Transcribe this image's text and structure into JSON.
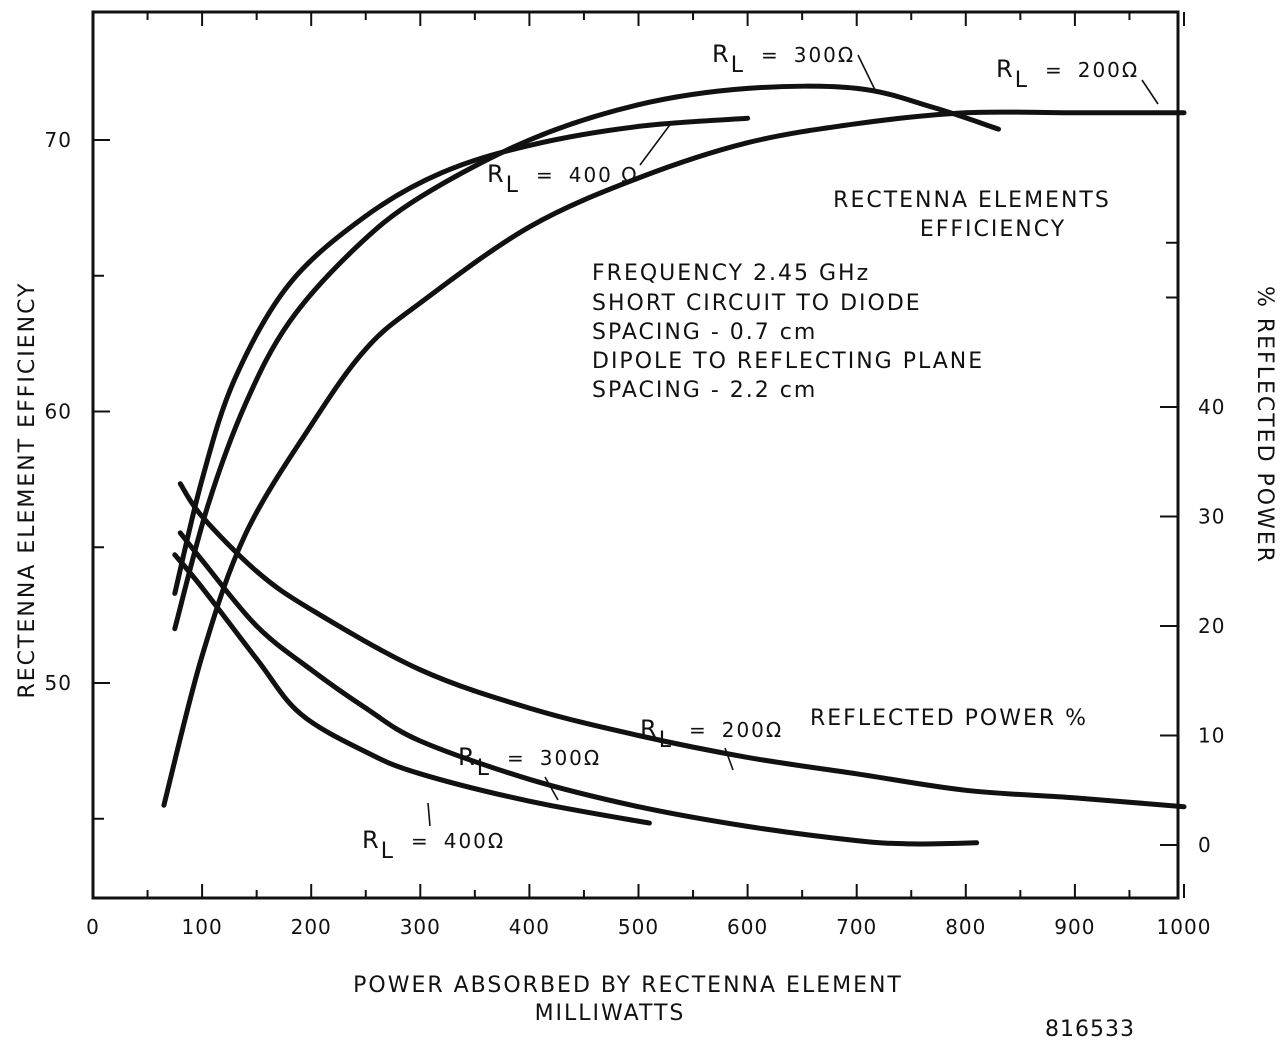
{
  "chart_data": {
    "type": "line",
    "xlabel": "POWER ABSORBED BY RECTENNA ELEMENT",
    "xlabel_units": "MILLIWATTS",
    "ylabel_left": "RECTENNA ELEMENT EFFICIENCY",
    "ylabel_right": "% REFLECTED POWER",
    "xlim": [
      0,
      1000
    ],
    "ylim_left": [
      42,
      75
    ],
    "ylim_right": [
      -5,
      60
    ],
    "x_ticks": [
      "0",
      "100",
      "200",
      "300",
      "400",
      "500",
      "600",
      "700",
      "800",
      "900",
      "1000"
    ],
    "y_left_ticks": [
      "50",
      "60",
      "70"
    ],
    "y_right_ticks": [
      "0",
      "10",
      "20",
      "30",
      "40"
    ],
    "grid": false,
    "title": "RECTENNA ELEMENTS\nEFFICIENCY",
    "conditions": [
      "FREQUENCY 2.45 GHz",
      "SHORT CIRCUIT TO DIODE",
      "SPACING - 0.7 cm",
      "DIPOLE TO REFLECTING PLANE",
      "SPACING - 2.2 cm"
    ],
    "reflected_label": "REFLECTED POWER %",
    "figure_number": "816533",
    "efficiency_series": [
      {
        "name": "R_L = 400Ω",
        "axis": "left",
        "x": [
          75,
          100,
          130,
          180,
          250,
          320,
          400,
          500,
          600
        ],
        "y": [
          53.3,
          57.5,
          61.2,
          64.7,
          67.2,
          68.8,
          69.8,
          70.5,
          70.8
        ]
      },
      {
        "name": "R_L = 300Ω",
        "axis": "left",
        "x": [
          75,
          105,
          140,
          180,
          240,
          300,
          400,
          500,
          600,
          700,
          770,
          830
        ],
        "y": [
          52.0,
          56.5,
          60.3,
          63.3,
          66.0,
          67.9,
          70.0,
          71.3,
          71.9,
          71.9,
          71.2,
          70.4
        ]
      },
      {
        "name": "R_L = 200Ω",
        "axis": "left",
        "x": [
          65,
          100,
          140,
          200,
          250,
          300,
          400,
          500,
          600,
          700,
          800,
          900,
          1000
        ],
        "y": [
          45.5,
          51.0,
          55.5,
          59.5,
          62.3,
          64.0,
          66.8,
          68.6,
          69.9,
          70.6,
          71.0,
          71.0,
          71.0
        ]
      }
    ],
    "reflected_series": [
      {
        "name": "R_L = 200Ω",
        "axis": "right",
        "x": [
          80,
          100,
          150,
          200,
          300,
          400,
          500,
          600,
          700,
          800,
          900,
          1000
        ],
        "y": [
          33.0,
          30.0,
          25.0,
          21.5,
          16.0,
          12.5,
          10.0,
          8.0,
          6.5,
          5.0,
          4.3,
          3.5
        ]
      },
      {
        "name": "R_L = 300Ω",
        "axis": "right",
        "x": [
          80,
          100,
          150,
          200,
          250,
          300,
          400,
          500,
          600,
          700,
          750,
          810
        ],
        "y": [
          28.5,
          26.0,
          20.0,
          16.0,
          12.5,
          9.5,
          6.0,
          3.5,
          1.7,
          0.4,
          0.1,
          0.2
        ]
      },
      {
        "name": "R_L = 400Ω",
        "axis": "right",
        "x": [
          75,
          100,
          150,
          190,
          250,
          300,
          400,
          510
        ],
        "y": [
          26.5,
          23.5,
          17.0,
          12.0,
          8.5,
          6.5,
          4.0,
          2.0
        ]
      }
    ],
    "curve_labels": {
      "top_300": "300Ω",
      "top_200": "200Ω",
      "top_400": "400 Ω",
      "bot_200": "200Ω",
      "bot_300": "300Ω",
      "bot_400": "400Ω"
    },
    "rl_symbol": "R",
    "rl_subscript": "L",
    "equals": "="
  }
}
